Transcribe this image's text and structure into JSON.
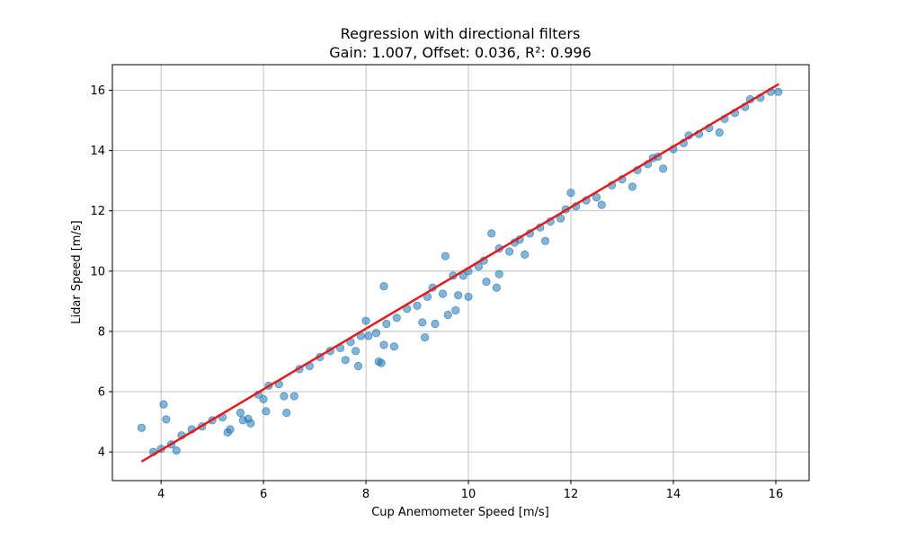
{
  "chart_data": {
    "type": "scatter",
    "title": "Regression with directional filters",
    "subtitle": "Gain: 1.007, Offset: 0.036, R²: 0.996",
    "xlabel": "Cup Anemometer Speed [m/s]",
    "ylabel": "Lidar Speed [m/s]",
    "xlim": [
      3.05,
      16.65
    ],
    "ylim": [
      3.05,
      16.85
    ],
    "xticks": [
      4,
      6,
      8,
      10,
      12,
      14,
      16
    ],
    "yticks": [
      4,
      6,
      8,
      10,
      12,
      14,
      16
    ],
    "grid": true,
    "regression": {
      "gain": 1.007,
      "offset": 0.036,
      "x_range": [
        3.62,
        16.06
      ]
    },
    "colors": {
      "points": "#1f77b4",
      "regression_line": "#e41a1c",
      "grid": "#b0b0b0"
    },
    "series": [
      {
        "points": [
          [
            3.62,
            4.8
          ],
          [
            3.85,
            4.0
          ],
          [
            4.0,
            4.1
          ],
          [
            4.05,
            5.58
          ],
          [
            4.1,
            5.08
          ],
          [
            4.3,
            4.05
          ],
          [
            4.2,
            4.25
          ],
          [
            4.4,
            4.55
          ],
          [
            4.6,
            4.75
          ],
          [
            4.8,
            4.85
          ],
          [
            5.0,
            5.05
          ],
          [
            5.2,
            5.15
          ],
          [
            5.3,
            4.65
          ],
          [
            5.35,
            4.75
          ],
          [
            5.55,
            5.3
          ],
          [
            5.6,
            5.05
          ],
          [
            5.7,
            5.1
          ],
          [
            5.75,
            4.95
          ],
          [
            5.9,
            5.9
          ],
          [
            6.0,
            5.75
          ],
          [
            6.05,
            5.35
          ],
          [
            6.1,
            6.2
          ],
          [
            6.3,
            6.25
          ],
          [
            6.4,
            5.85
          ],
          [
            6.45,
            5.3
          ],
          [
            6.6,
            5.85
          ],
          [
            6.7,
            6.75
          ],
          [
            6.9,
            6.85
          ],
          [
            7.1,
            7.15
          ],
          [
            7.3,
            7.35
          ],
          [
            7.5,
            7.45
          ],
          [
            7.6,
            7.05
          ],
          [
            7.7,
            7.65
          ],
          [
            7.8,
            7.35
          ],
          [
            7.85,
            6.85
          ],
          [
            7.9,
            7.85
          ],
          [
            8.0,
            8.35
          ],
          [
            8.05,
            7.85
          ],
          [
            8.2,
            7.95
          ],
          [
            8.25,
            7.0
          ],
          [
            8.3,
            6.95
          ],
          [
            8.35,
            7.55
          ],
          [
            8.4,
            8.25
          ],
          [
            8.35,
            9.5
          ],
          [
            8.55,
            7.5
          ],
          [
            8.6,
            8.45
          ],
          [
            8.8,
            8.75
          ],
          [
            9.0,
            8.85
          ],
          [
            9.1,
            8.3
          ],
          [
            9.15,
            7.8
          ],
          [
            9.2,
            9.15
          ],
          [
            9.3,
            9.45
          ],
          [
            9.35,
            8.25
          ],
          [
            9.5,
            9.25
          ],
          [
            9.55,
            10.5
          ],
          [
            9.6,
            8.55
          ],
          [
            9.7,
            9.85
          ],
          [
            9.75,
            8.7
          ],
          [
            9.8,
            9.2
          ],
          [
            9.9,
            9.85
          ],
          [
            10.0,
            10.0
          ],
          [
            10.0,
            9.15
          ],
          [
            10.2,
            10.15
          ],
          [
            10.3,
            10.35
          ],
          [
            10.45,
            11.25
          ],
          [
            10.35,
            9.65
          ],
          [
            10.6,
            10.75
          ],
          [
            10.55,
            9.45
          ],
          [
            10.6,
            9.9
          ],
          [
            10.8,
            10.65
          ],
          [
            10.9,
            10.95
          ],
          [
            11.0,
            11.05
          ],
          [
            11.1,
            10.55
          ],
          [
            11.2,
            11.25
          ],
          [
            11.4,
            11.45
          ],
          [
            11.5,
            11.0
          ],
          [
            11.6,
            11.65
          ],
          [
            11.8,
            11.75
          ],
          [
            11.9,
            12.05
          ],
          [
            12.0,
            12.6
          ],
          [
            12.1,
            12.15
          ],
          [
            12.3,
            12.35
          ],
          [
            12.5,
            12.45
          ],
          [
            12.6,
            12.2
          ],
          [
            12.8,
            12.85
          ],
          [
            13.0,
            13.05
          ],
          [
            13.2,
            12.8
          ],
          [
            13.3,
            13.35
          ],
          [
            13.5,
            13.55
          ],
          [
            13.6,
            13.75
          ],
          [
            13.7,
            13.8
          ],
          [
            13.8,
            13.4
          ],
          [
            14.0,
            14.05
          ],
          [
            14.2,
            14.25
          ],
          [
            14.3,
            14.5
          ],
          [
            14.5,
            14.55
          ],
          [
            14.7,
            14.75
          ],
          [
            14.9,
            14.6
          ],
          [
            15.0,
            15.05
          ],
          [
            15.2,
            15.25
          ],
          [
            15.4,
            15.45
          ],
          [
            15.5,
            15.7
          ],
          [
            15.7,
            15.75
          ],
          [
            15.9,
            15.95
          ],
          [
            16.05,
            15.95
          ]
        ]
      }
    ]
  }
}
